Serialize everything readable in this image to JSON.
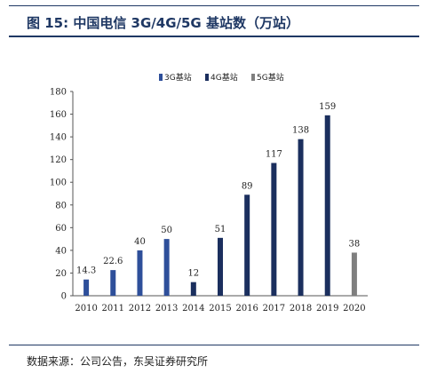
{
  "figure": {
    "title": "图 15:  中国电信 3G/4G/5G 基站数（万站）",
    "source": "数据来源：公司公告，东吴证券研究所"
  },
  "chart_data": {
    "type": "bar",
    "title": "",
    "xlabel": "",
    "ylabel": "",
    "categories": [
      "2010",
      "2011",
      "2012",
      "2013",
      "2014",
      "2015",
      "2016",
      "2017",
      "2018",
      "2019",
      "2020"
    ],
    "ylim": [
      0,
      180
    ],
    "yticks": [
      0,
      20,
      40,
      60,
      80,
      100,
      120,
      140,
      160,
      180
    ],
    "grid": false,
    "legend_position": "top",
    "series": [
      {
        "name": "3G基站",
        "color": "#2e4f9a",
        "values": [
          14.3,
          22.6,
          40,
          50,
          null,
          null,
          null,
          null,
          null,
          null,
          null
        ],
        "labels": [
          "14.3",
          "22.6",
          "40",
          "50",
          "",
          "",
          "",
          "",
          "",
          "",
          ""
        ]
      },
      {
        "name": "4G基站",
        "color": "#1b2f5e",
        "values": [
          null,
          null,
          null,
          null,
          12,
          51,
          89,
          117,
          138,
          159,
          null
        ],
        "labels": [
          "",
          "",
          "",
          "",
          "12",
          "51",
          "89",
          "117",
          "138",
          "159",
          ""
        ]
      },
      {
        "name": "5G基站",
        "color": "#7f7f7f",
        "values": [
          null,
          null,
          null,
          null,
          null,
          null,
          null,
          null,
          null,
          null,
          38
        ],
        "labels": [
          "",
          "",
          "",
          "",
          "",
          "",
          "",
          "",
          "",
          "",
          "38"
        ]
      }
    ]
  }
}
